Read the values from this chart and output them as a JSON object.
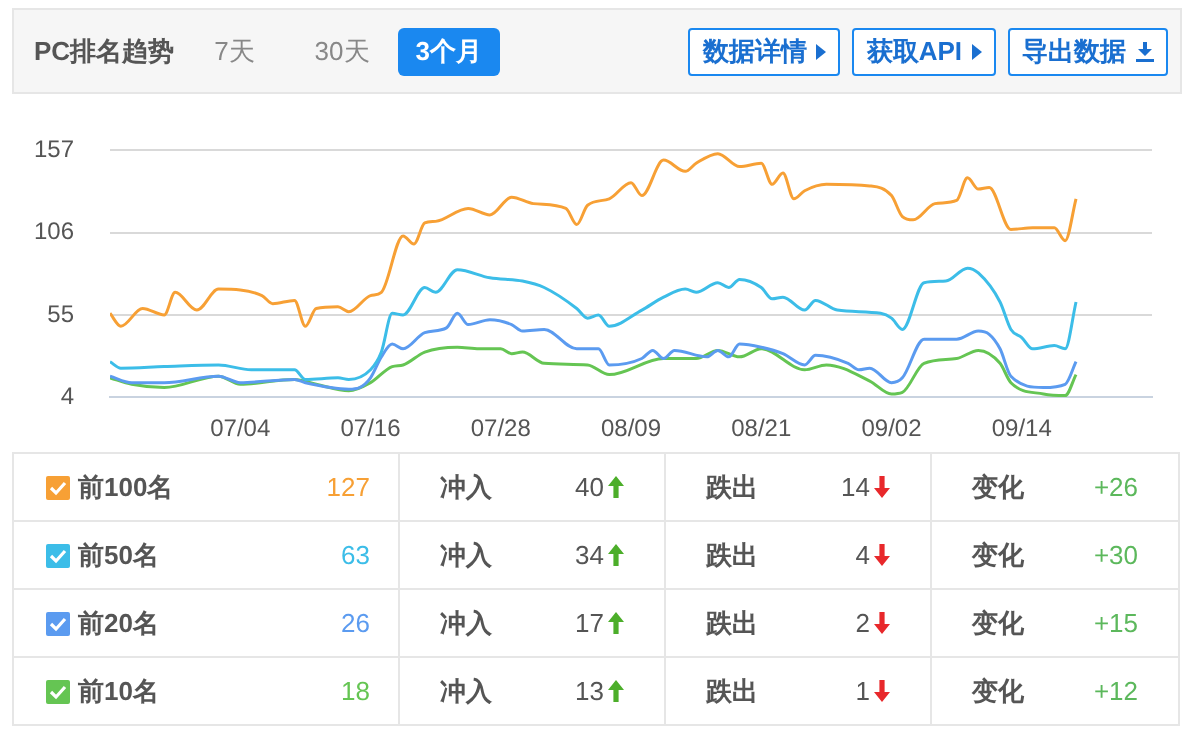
{
  "chart_data": {
    "type": "line",
    "title": "PC排名趋势",
    "xlim": [
      "--06-22",
      "--09-26"
    ],
    "xticks": [
      {
        "value": "--07-04",
        "label": "07/04"
      },
      {
        "value": "--07-16",
        "label": "07/16"
      },
      {
        "value": "--07-28",
        "label": "07/28"
      },
      {
        "value": "--08-09",
        "label": "08/09"
      },
      {
        "value": "--08-21",
        "label": "08/21"
      },
      {
        "value": "--09-02",
        "label": "09/02"
      },
      {
        "value": "--09-14",
        "label": "09/14"
      }
    ],
    "ylim": [
      4,
      157
    ],
    "yticks": [
      4,
      55,
      106,
      157
    ],
    "grid": "y",
    "legend": "bottom",
    "series": [
      {
        "name": "前100名",
        "color": "#f7a035",
        "x": [
          "--06-22",
          "--06-23",
          "--06-25",
          "--06-27",
          "--06-28",
          "--06-30",
          "--07-02",
          "--07-06",
          "--07-07",
          "--07-09",
          "--07-10",
          "--07-11",
          "--07-13",
          "--07-14",
          "--07-16",
          "--07-17",
          "--07-19",
          "--07-20",
          "--07-21",
          "--07-22",
          "--07-25",
          "--07-27",
          "--07-29",
          "--07-31",
          "--08-03",
          "--08-04",
          "--08-05",
          "--08-07",
          "--08-09",
          "--08-10",
          "--08-12",
          "--08-14",
          "--08-15",
          "--08-17",
          "--08-19",
          "--08-21",
          "--08-22",
          "--08-23",
          "--08-24",
          "--08-25",
          "--08-27",
          "--08-31",
          "--09-02",
          "--09-03",
          "--09-04",
          "--09-06",
          "--09-08",
          "--09-09",
          "--09-10",
          "--09-11",
          "--09-13",
          "--09-15",
          "--09-17",
          "--09-18",
          "--09-19"
        ],
        "values": [
          56,
          48,
          59,
          55,
          69,
          58,
          71,
          67,
          62,
          64,
          48,
          59,
          60,
          57,
          67,
          69,
          104,
          99,
          112,
          113,
          121,
          117,
          128,
          124,
          121,
          111,
          123,
          127,
          137,
          129,
          151,
          144,
          149,
          155,
          147,
          149,
          136,
          143,
          127,
          132,
          136,
          135,
          129,
          116,
          114,
          124,
          126,
          140,
          133,
          134,
          108,
          109,
          109,
          101,
          127
        ]
      },
      {
        "name": "前50名",
        "color": "#3cbde8",
        "x": [
          "--06-22",
          "--06-23",
          "--06-27",
          "--07-02",
          "--07-05",
          "--07-09",
          "--07-10",
          "--07-13",
          "--07-14",
          "--07-16",
          "--07-17",
          "--07-18",
          "--07-19",
          "--07-21",
          "--07-22",
          "--07-24",
          "--07-27",
          "--07-30",
          "--08-01",
          "--08-04",
          "--08-05",
          "--08-06",
          "--08-07",
          "--08-10",
          "--08-12",
          "--08-14",
          "--08-15",
          "--08-17",
          "--08-18",
          "--08-19",
          "--08-21",
          "--08-22",
          "--08-23",
          "--08-25",
          "--08-26",
          "--08-28",
          "--09-01",
          "--09-02",
          "--09-03",
          "--09-05",
          "--09-07",
          "--09-09",
          "--09-10",
          "--09-12",
          "--09-13",
          "--09-14",
          "--09-15",
          "--09-17",
          "--09-18",
          "--09-19"
        ],
        "values": [
          26,
          22,
          23,
          24,
          21,
          21,
          15,
          16,
          15,
          21,
          32,
          56,
          55,
          72,
          69,
          83,
          78,
          76,
          72,
          59,
          53,
          55,
          48,
          58,
          66,
          71,
          69,
          75,
          72,
          77,
          72,
          65,
          66,
          58,
          64,
          58,
          56,
          53,
          46,
          75,
          76,
          84,
          81,
          63,
          46,
          41,
          34,
          36,
          34,
          63
        ]
      },
      {
        "name": "前20名",
        "color": "#5b9bf0",
        "x": [
          "--06-22",
          "--06-24",
          "--06-27",
          "--07-02",
          "--07-04",
          "--07-09",
          "--07-10",
          "--07-14",
          "--07-15",
          "--07-16",
          "--07-17",
          "--07-18",
          "--07-19",
          "--07-21",
          "--07-23",
          "--07-24",
          "--07-25",
          "--07-27",
          "--07-29",
          "--07-30",
          "--08-01",
          "--08-04",
          "--08-06",
          "--08-07",
          "--08-10",
          "--08-11",
          "--08-12",
          "--08-13",
          "--08-16",
          "--08-17",
          "--08-18",
          "--08-19",
          "--08-21",
          "--08-23",
          "--08-25",
          "--08-26",
          "--08-29",
          "--08-30",
          "--08-31",
          "--09-02",
          "--09-03",
          "--09-05",
          "--09-08",
          "--09-10",
          "--09-11",
          "--09-12",
          "--09-13",
          "--09-16",
          "--09-18",
          "--09-19"
        ],
        "values": [
          17,
          13,
          13,
          17,
          13,
          15,
          13,
          9,
          10,
          16,
          29,
          37,
          34,
          44,
          47,
          56,
          49,
          52,
          49,
          45,
          46,
          34,
          34,
          24,
          28,
          33,
          28,
          33,
          29,
          33,
          29,
          37,
          35,
          31,
          24,
          30,
          25,
          21,
          22,
          13,
          16,
          40,
          40,
          45,
          43,
          34,
          17,
          10,
          12,
          26
        ]
      },
      {
        "name": "前10名",
        "color": "#65c553",
        "x": [
          "--06-22",
          "--06-24",
          "--06-27",
          "--07-02",
          "--07-04",
          "--07-09",
          "--07-11",
          "--07-14",
          "--07-16",
          "--07-18",
          "--07-19",
          "--07-21",
          "--07-24",
          "--07-26",
          "--07-28",
          "--07-29",
          "--07-30",
          "--08-01",
          "--08-05",
          "--08-07",
          "--08-12",
          "--08-15",
          "--08-17",
          "--08-19",
          "--08-21",
          "--08-25",
          "--08-27",
          "--08-31",
          "--09-02",
          "--09-03",
          "--09-05",
          "--09-08",
          "--09-10",
          "--09-12",
          "--09-13",
          "--09-16",
          "--09-18",
          "--09-19"
        ],
        "values": [
          16,
          12,
          10,
          17,
          12,
          15,
          12,
          8,
          13,
          23,
          24,
          32,
          35,
          34,
          34,
          31,
          32,
          25,
          24,
          18,
          28,
          28,
          33,
          29,
          34,
          21,
          24,
          14,
          6,
          7,
          25,
          28,
          33,
          25,
          13,
          6,
          5,
          18
        ]
      }
    ],
    "annotations": [
      "7天",
      "30天",
      "3个月",
      "数据详情",
      "获取API",
      "导出数据",
      "127",
      "冲入",
      "40",
      "跌出",
      "14",
      "变化",
      "+26",
      "63",
      "冲入",
      "34",
      "跌出",
      "4",
      "变化",
      "+30",
      "26",
      "冲入",
      "17",
      "跌出",
      "2",
      "变化",
      "+15",
      "18",
      "冲入",
      "13",
      "跌出",
      "1",
      "变化",
      "+12"
    ]
  }
}
